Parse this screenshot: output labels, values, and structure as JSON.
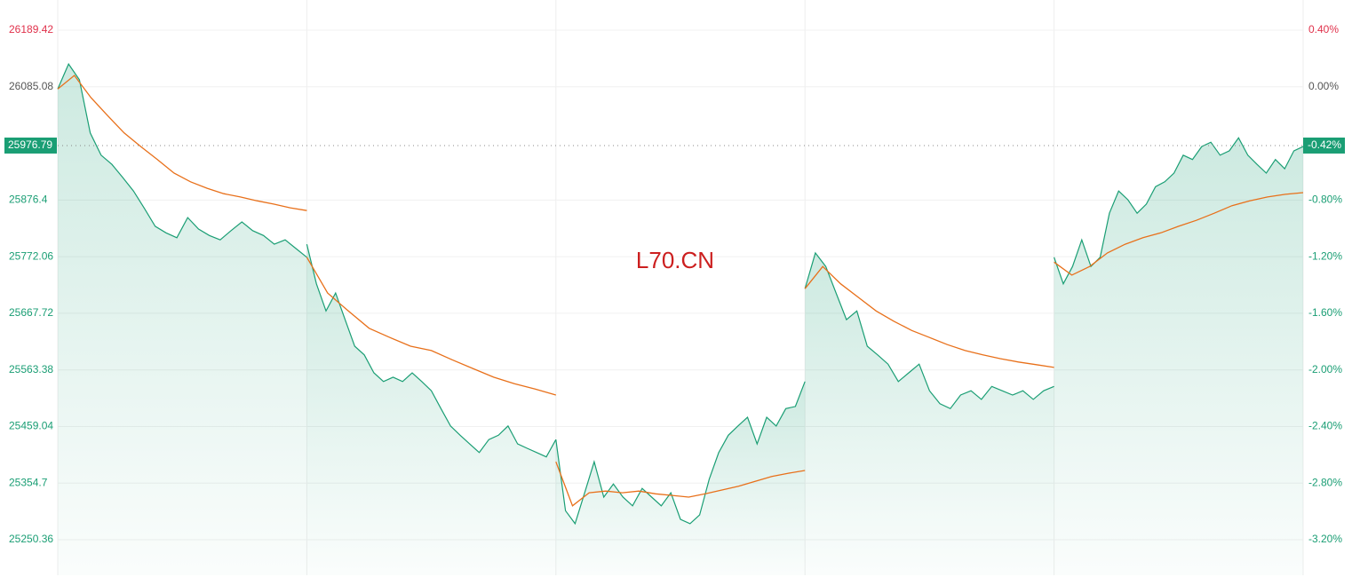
{
  "chart_data": {
    "type": "line",
    "watermark": "L70.CN",
    "prev_close": 26085.08,
    "last": {
      "price": 25976.79,
      "change": {
        "value": -0.42,
        "label": "-0.42%"
      }
    },
    "ylim": [
      25185,
      26245
    ],
    "yticks": [
      26189.42,
      26085.08,
      25876.4,
      25772.06,
      25667.72,
      25563.38,
      25459.04,
      25354.7,
      25250.36
    ],
    "y2lim": [
      -3.451,
      0.613
    ],
    "y2ticks": [
      {
        "value": 0.4,
        "label": "0.40%"
      },
      {
        "value": 0,
        "label": "0.00%"
      },
      {
        "value": -0.8,
        "label": "-0.80%"
      },
      {
        "value": -1.2,
        "label": "-1.20%"
      },
      {
        "value": -1.6,
        "label": "-1.60%"
      },
      {
        "value": -2.0,
        "label": "-2.00%"
      },
      {
        "value": -2.4,
        "label": "-2.40%"
      },
      {
        "value": -2.8,
        "label": "-2.80%"
      },
      {
        "value": -3.2,
        "label": "-3.20%"
      }
    ],
    "grid": true,
    "price_color": "#1a9e74",
    "avg_color": "#e8701a",
    "up_color": "#e0314b",
    "down_color": "#1a9e74",
    "flat_color": "#555555",
    "days": [
      {
        "price": [
          26081,
          26127,
          26098,
          26000,
          25959,
          25942,
          25918,
          25893,
          25861,
          25828,
          25816,
          25807,
          25844,
          25823,
          25811,
          25803,
          25820,
          25836,
          25820,
          25811,
          25795,
          25803,
          25787,
          25771
        ],
        "avg": [
          26081,
          26106,
          26065,
          26032,
          26000,
          25975,
          25951,
          25926,
          25910,
          25898,
          25888,
          25882,
          25875,
          25869,
          25862,
          25857
        ]
      },
      {
        "price": [
          25795,
          25722,
          25672,
          25705,
          25656,
          25607,
          25591,
          25558,
          25542,
          25550,
          25542,
          25558,
          25542,
          25525,
          25492,
          25460,
          25443,
          25427,
          25411,
          25435,
          25443,
          25460,
          25427,
          25419,
          25411,
          25403,
          25435
        ],
        "avg": [
          25771,
          25705,
          25672,
          25640,
          25623,
          25607,
          25599,
          25582,
          25566,
          25550,
          25538,
          25528,
          25517
        ]
      },
      {
        "price": [
          25435,
          25304,
          25280,
          25337,
          25394,
          25329,
          25353,
          25329,
          25313,
          25345,
          25329,
          25313,
          25337,
          25288,
          25280,
          25296,
          25362,
          25411,
          25443,
          25460,
          25476,
          25427,
          25476,
          25460,
          25492,
          25496,
          25542
        ],
        "avg": [
          25394,
          25313,
          25337,
          25340,
          25337,
          25340,
          25335,
          25332,
          25329,
          25335,
          25342,
          25349,
          25358,
          25367,
          25373,
          25378
        ]
      },
      {
        "price": [
          25713,
          25779,
          25754,
          25705,
          25656,
          25672,
          25607,
          25591,
          25574,
          25542,
          25558,
          25574,
          25525,
          25501,
          25492,
          25517,
          25525,
          25509,
          25533,
          25525,
          25517,
          25525,
          25509,
          25525,
          25533
        ],
        "avg": [
          25713,
          25754,
          25722,
          25697,
          25672,
          25653,
          25636,
          25623,
          25610,
          25599,
          25591,
          25584,
          25578,
          25573,
          25568
        ]
      },
      {
        "price": [
          25771,
          25722,
          25754,
          25803,
          25754,
          25771,
          25852,
          25893,
          25877,
          25852,
          25869,
          25901,
          25910,
          25926,
          25959,
          25951,
          25975,
          25983,
          25959,
          25967,
          25991,
          25959,
          25942,
          25926,
          25951,
          25934,
          25967,
          25975
        ],
        "avg": [
          25762,
          25738,
          25754,
          25779,
          25795,
          25807,
          25816,
          25828,
          25839,
          25852,
          25866,
          25875,
          25882,
          25887,
          25890
        ]
      }
    ]
  }
}
